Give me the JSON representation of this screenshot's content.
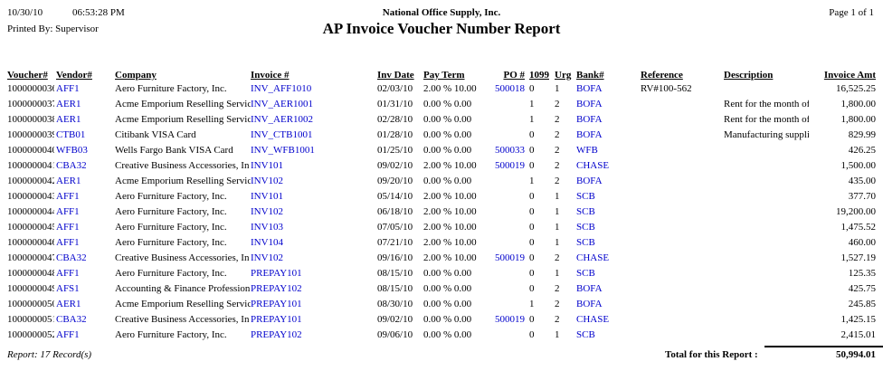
{
  "page_header": {
    "date": "10/30/10",
    "time": "06:53:28 PM",
    "company": "National Office Supply, Inc.",
    "page": "Page 1 of 1",
    "printed_by": "Printed By: Supervisor",
    "title": "AP Invoice Voucher Number Report"
  },
  "colors": {
    "link_blue": "#0000CC",
    "text": "#000000",
    "background": "#FFFFFF"
  },
  "table": {
    "columns": {
      "voucher": "Voucher#",
      "vendor": "Vendor#",
      "company": "Company",
      "invoice": "Invoice #",
      "inv_date": "Inv Date",
      "pay_term": "Pay Term",
      "po": "PO #",
      "f1099": "1099",
      "urg": "Urg",
      "bank": "Bank#",
      "reference": "Reference",
      "description": "Description",
      "amount": "Invoice Amt"
    },
    "rows": [
      {
        "voucher": "1000000036",
        "vendor": "AFF1",
        "company": "Aero Furniture Factory, Inc.",
        "invoice": "INV_AFF1010",
        "inv_date": "02/03/10",
        "pay_term": "2.00 % 10.00",
        "po": "500018",
        "f1099": "0",
        "urg": "1",
        "bank": "BOFA",
        "reference": "RV#100-562",
        "description": "",
        "amount": "16,525.25"
      },
      {
        "voucher": "1000000037",
        "vendor": "AER1",
        "company": "Acme Emporium Reselling Servic",
        "invoice": "INV_AER1001",
        "inv_date": "01/31/10",
        "pay_term": "0.00 % 0.00",
        "po": "",
        "f1099": "1",
        "urg": "2",
        "bank": "BOFA",
        "reference": "",
        "description": "Rent for the month of Ja",
        "amount": "1,800.00"
      },
      {
        "voucher": "1000000038",
        "vendor": "AER1",
        "company": "Acme Emporium Reselling Servic",
        "invoice": "INV_AER1002",
        "inv_date": "02/28/10",
        "pay_term": "0.00 % 0.00",
        "po": "",
        "f1099": "1",
        "urg": "2",
        "bank": "BOFA",
        "reference": "",
        "description": "Rent for the month of F",
        "amount": "1,800.00"
      },
      {
        "voucher": "1000000039",
        "vendor": "CTB01",
        "company": "Citibank VISA Card",
        "invoice": "INV_CTB1001",
        "inv_date": "01/28/10",
        "pay_term": "0.00 % 0.00",
        "po": "",
        "f1099": "0",
        "urg": "2",
        "bank": "BOFA",
        "reference": "",
        "description": "Manufacturing supplies",
        "amount": "829.99"
      },
      {
        "voucher": "1000000040",
        "vendor": "WFB03",
        "company": "Wells Fargo Bank VISA Card",
        "invoice": "INV_WFB1001",
        "inv_date": "01/25/10",
        "pay_term": "0.00 % 0.00",
        "po": "500033",
        "f1099": "0",
        "urg": "2",
        "bank": "WFB",
        "reference": "",
        "description": "",
        "amount": "426.25"
      },
      {
        "voucher": "1000000041",
        "vendor": "CBA32",
        "company": "Creative Business Accessories, In",
        "invoice": "INV101",
        "inv_date": "09/02/10",
        "pay_term": "2.00 % 10.00",
        "po": "500019",
        "f1099": "0",
        "urg": "2",
        "bank": "CHASE",
        "reference": "",
        "description": "",
        "amount": "1,500.00"
      },
      {
        "voucher": "1000000042",
        "vendor": "AER1",
        "company": "Acme Emporium Reselling Servic",
        "invoice": "INV102",
        "inv_date": "09/20/10",
        "pay_term": "0.00 % 0.00",
        "po": "",
        "f1099": "1",
        "urg": "2",
        "bank": "BOFA",
        "reference": "",
        "description": "",
        "amount": "435.00"
      },
      {
        "voucher": "1000000043",
        "vendor": "AFF1",
        "company": "Aero Furniture Factory, Inc.",
        "invoice": "INV101",
        "inv_date": "05/14/10",
        "pay_term": "2.00 % 10.00",
        "po": "",
        "f1099": "0",
        "urg": "1",
        "bank": "SCB",
        "reference": "",
        "description": "",
        "amount": "377.70"
      },
      {
        "voucher": "1000000044",
        "vendor": "AFF1",
        "company": "Aero Furniture Factory, Inc.",
        "invoice": "INV102",
        "inv_date": "06/18/10",
        "pay_term": "2.00 % 10.00",
        "po": "",
        "f1099": "0",
        "urg": "1",
        "bank": "SCB",
        "reference": "",
        "description": "",
        "amount": "19,200.00"
      },
      {
        "voucher": "1000000045",
        "vendor": "AFF1",
        "company": "Aero Furniture Factory, Inc.",
        "invoice": "INV103",
        "inv_date": "07/05/10",
        "pay_term": "2.00 % 10.00",
        "po": "",
        "f1099": "0",
        "urg": "1",
        "bank": "SCB",
        "reference": "",
        "description": "",
        "amount": "1,475.52"
      },
      {
        "voucher": "1000000046",
        "vendor": "AFF1",
        "company": "Aero Furniture Factory, Inc.",
        "invoice": "INV104",
        "inv_date": "07/21/10",
        "pay_term": "2.00 % 10.00",
        "po": "",
        "f1099": "0",
        "urg": "1",
        "bank": "SCB",
        "reference": "",
        "description": "",
        "amount": "460.00"
      },
      {
        "voucher": "1000000047",
        "vendor": "CBA32",
        "company": "Creative Business Accessories, In",
        "invoice": "INV102",
        "inv_date": "09/16/10",
        "pay_term": "2.00 % 10.00",
        "po": "500019",
        "f1099": "0",
        "urg": "2",
        "bank": "CHASE",
        "reference": "",
        "description": "",
        "amount": "1,527.19"
      },
      {
        "voucher": "1000000048",
        "vendor": "AFF1",
        "company": "Aero Furniture Factory, Inc.",
        "invoice": "PREPAY101",
        "inv_date": "08/15/10",
        "pay_term": "0.00 % 0.00",
        "po": "",
        "f1099": "0",
        "urg": "1",
        "bank": "SCB",
        "reference": "",
        "description": "",
        "amount": "125.35"
      },
      {
        "voucher": "1000000049",
        "vendor": "AFS1",
        "company": "Accounting & Finance Profession",
        "invoice": "PREPAY102",
        "inv_date": "08/15/10",
        "pay_term": "0.00 % 0.00",
        "po": "",
        "f1099": "0",
        "urg": "2",
        "bank": "BOFA",
        "reference": "",
        "description": "",
        "amount": "425.75"
      },
      {
        "voucher": "1000000050",
        "vendor": "AER1",
        "company": "Acme Emporium Reselling Servic",
        "invoice": "PREPAY101",
        "inv_date": "08/30/10",
        "pay_term": "0.00 % 0.00",
        "po": "",
        "f1099": "1",
        "urg": "2",
        "bank": "BOFA",
        "reference": "",
        "description": "",
        "amount": "245.85"
      },
      {
        "voucher": "1000000051",
        "vendor": "CBA32",
        "company": "Creative Business Accessories, In",
        "invoice": "PREPAY101",
        "inv_date": "09/02/10",
        "pay_term": "0.00 % 0.00",
        "po": "500019",
        "f1099": "0",
        "urg": "2",
        "bank": "CHASE",
        "reference": "",
        "description": "",
        "amount": "1,425.15"
      },
      {
        "voucher": "1000000052",
        "vendor": "AFF1",
        "company": "Aero Furniture Factory, Inc.",
        "invoice": "PREPAY102",
        "inv_date": "09/06/10",
        "pay_term": "0.00 % 0.00",
        "po": "",
        "f1099": "0",
        "urg": "1",
        "bank": "SCB",
        "reference": "",
        "description": "",
        "amount": "2,415.01"
      }
    ]
  },
  "footer": {
    "record_count": "Report: 17 Record(s)",
    "total_label": "Total for this Report :",
    "total_amount": "50,994.01"
  }
}
